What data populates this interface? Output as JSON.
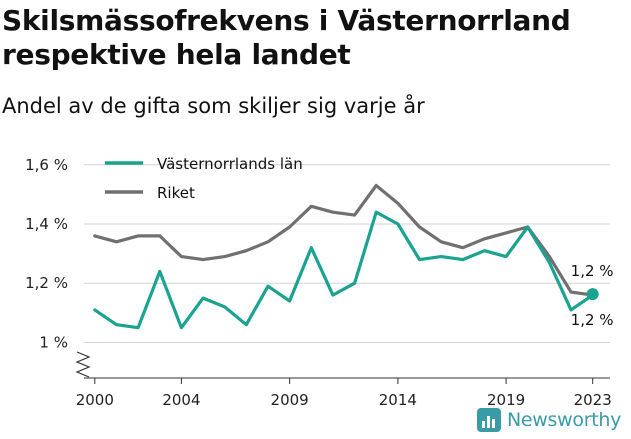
{
  "header": {
    "title": "Skilsmässofrekvens i Västernorrland respektive hela landet",
    "subtitle": "Andel av de gifta som skiljer sig varje år"
  },
  "brand": {
    "name": "Newsworthy"
  },
  "colors": {
    "series1": "#1aa391",
    "series2": "#707070",
    "grid": "#d4d4d4",
    "brand": "#3a9ba8"
  },
  "chart_data": {
    "type": "line",
    "title": "Skilsmässofrekvens i Västernorrland respektive hela landet",
    "subtitle": "Andel av de gifta som skiljer sig varje år",
    "xlabel": "",
    "ylabel": "",
    "x": [
      2000,
      2001,
      2002,
      2003,
      2004,
      2005,
      2006,
      2007,
      2008,
      2009,
      2010,
      2011,
      2012,
      2013,
      2014,
      2015,
      2016,
      2017,
      2018,
      2019,
      2020,
      2021,
      2022,
      2023
    ],
    "x_tick_values": [
      2000,
      2004,
      2009,
      2014,
      2019,
      2023
    ],
    "x_tick_labels": [
      "2000",
      "2004",
      "2009",
      "2014",
      "2019",
      "2023"
    ],
    "y_tick_values": [
      1.0,
      1.2,
      1.4,
      1.6
    ],
    "y_tick_labels": [
      "1 %",
      "1,2 %",
      "1,4 %",
      "1,6 %"
    ],
    "xlim": [
      1999.5,
      2023.8
    ],
    "ylim": [
      0.88,
      1.65
    ],
    "y_axis_break": true,
    "grid": true,
    "legend_position": "top-left",
    "series": [
      {
        "name": "Västernorrlands län",
        "color": "#1aa391",
        "values": [
          1.11,
          1.06,
          1.05,
          1.24,
          1.05,
          1.15,
          1.12,
          1.06,
          1.19,
          1.14,
          1.32,
          1.16,
          1.2,
          1.44,
          1.4,
          1.28,
          1.29,
          1.28,
          1.31,
          1.29,
          1.39,
          1.27,
          1.11,
          1.16
        ],
        "end_label": "1,2 %",
        "end_label_position": "below"
      },
      {
        "name": "Riket",
        "color": "#707070",
        "values": [
          1.36,
          1.34,
          1.36,
          1.36,
          1.29,
          1.28,
          1.29,
          1.31,
          1.34,
          1.39,
          1.46,
          1.44,
          1.43,
          1.53,
          1.47,
          1.39,
          1.34,
          1.32,
          1.35,
          1.37,
          1.39,
          1.29,
          1.17,
          1.16
        ],
        "end_label": "1,2 %",
        "end_label_position": "above"
      }
    ]
  }
}
